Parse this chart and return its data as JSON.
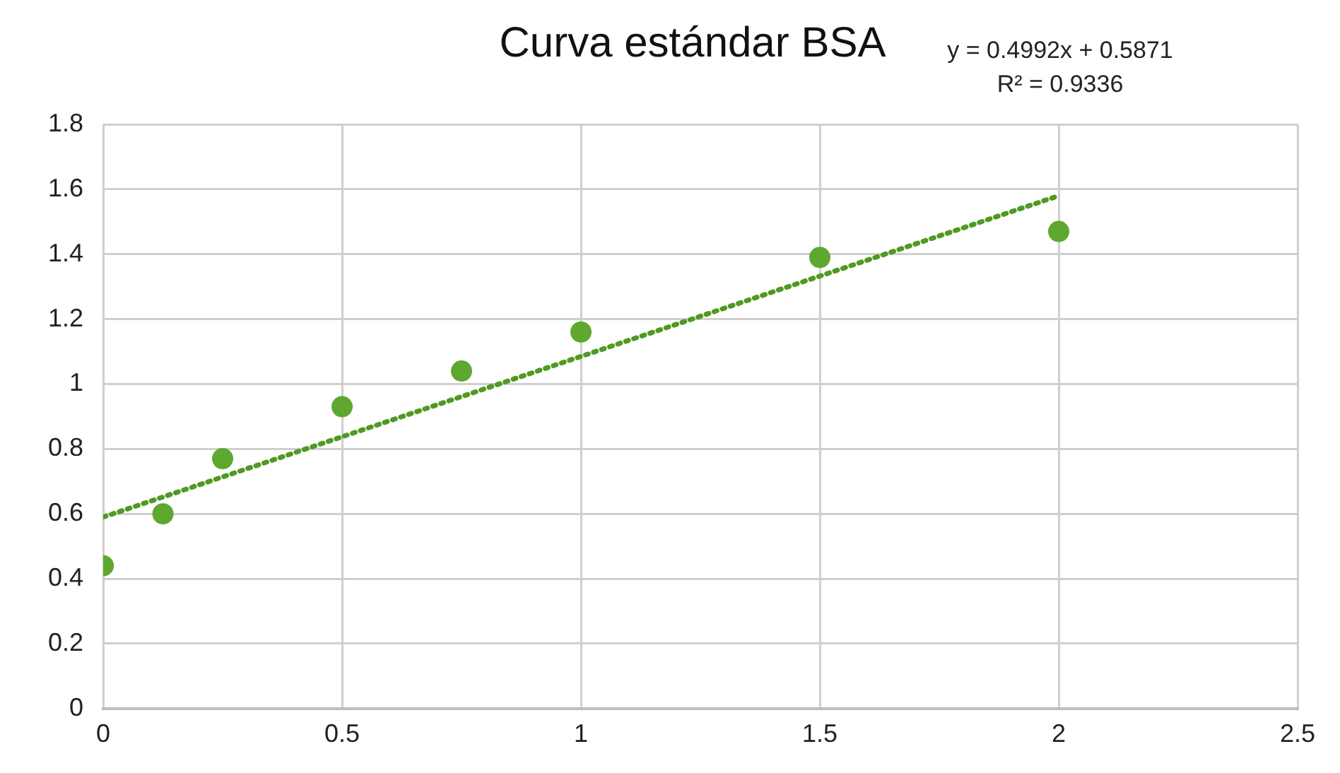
{
  "chart_data": {
    "type": "scatter",
    "title": "Curva estándar BSA",
    "annotations": [
      "y = 0.4992x + 0.5871",
      "R² = 0.9336"
    ],
    "xlim": [
      0,
      2.5
    ],
    "xticks": [
      0,
      0.5,
      1,
      1.5,
      2,
      2.5
    ],
    "ylim": [
      0,
      1.8
    ],
    "yticks": [
      0,
      0.2,
      0.4,
      0.6,
      0.8,
      1,
      1.2,
      1.4,
      1.6,
      1.8
    ],
    "grid": true,
    "legend": false,
    "marker": "circle",
    "series": [
      {
        "type": "scatter",
        "color": "#5ea82f",
        "x": [
          0,
          0.125,
          0.25,
          0.5,
          0.75,
          1,
          1.5,
          2
        ],
        "values": [
          0.44,
          0.6,
          0.77,
          0.93,
          1.04,
          1.16,
          1.39,
          1.47
        ]
      },
      {
        "type": "line",
        "color": "#4f9a22",
        "x": [
          0,
          2
        ],
        "values": [
          0.59,
          1.58
        ],
        "line_style": "dotted",
        "marker": "none"
      }
    ]
  }
}
